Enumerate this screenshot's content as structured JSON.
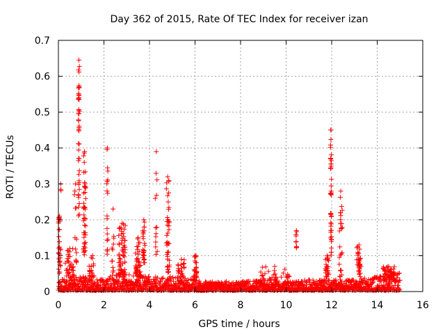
{
  "chart_data": {
    "type": "scatter",
    "title": "Day 362 of 2015, Rate Of TEC Index for receiver izan",
    "xlabel": "GPS time / hours",
    "ylabel": "ROTI / TECUs",
    "xlim": [
      0,
      16
    ],
    "ylim": [
      0,
      0.7
    ],
    "x_ticks": [
      "0",
      "2",
      "4",
      "6",
      "8",
      "10",
      "12",
      "14",
      "16"
    ],
    "y_ticks": [
      "0",
      "0.1",
      "0.2",
      "0.3",
      "0.4",
      "0.5",
      "0.6",
      "0.7"
    ],
    "grid": true,
    "marker": "+",
    "series_color": "#ff0000",
    "x_data_range": [
      0,
      15
    ],
    "baseline_envelope": [
      {
        "x": 0.0,
        "y": 0.03
      },
      {
        "x": 1.0,
        "y": 0.04
      },
      {
        "x": 2.0,
        "y": 0.03
      },
      {
        "x": 2.5,
        "y": 0.05
      },
      {
        "x": 3.5,
        "y": 0.04
      },
      {
        "x": 5.0,
        "y": 0.04
      },
      {
        "x": 6.5,
        "y": 0.025
      },
      {
        "x": 8.0,
        "y": 0.025
      },
      {
        "x": 9.0,
        "y": 0.03
      },
      {
        "x": 10.0,
        "y": 0.025
      },
      {
        "x": 11.0,
        "y": 0.03
      },
      {
        "x": 12.0,
        "y": 0.03
      },
      {
        "x": 13.0,
        "y": 0.03
      },
      {
        "x": 14.0,
        "y": 0.04
      },
      {
        "x": 15.0,
        "y": 0.05
      }
    ],
    "clusters": [
      {
        "x": 0.05,
        "spread": 0.1,
        "ymin": 0.05,
        "ymax": 0.21,
        "n": 30
      },
      {
        "x": 0.1,
        "spread": 0.05,
        "ymin": 0.28,
        "ymax": 0.3,
        "n": 2
      },
      {
        "x": 0.5,
        "spread": 0.4,
        "ymin": 0.04,
        "ymax": 0.12,
        "n": 35
      },
      {
        "x": 0.75,
        "spread": 0.1,
        "ymin": 0.08,
        "ymax": 0.3,
        "n": 12
      },
      {
        "x": 0.9,
        "spread": 0.05,
        "ymin": 0.2,
        "ymax": 0.645,
        "n": 45
      },
      {
        "x": 1.15,
        "spread": 0.1,
        "ymin": 0.1,
        "ymax": 0.39,
        "n": 45
      },
      {
        "x": 1.5,
        "spread": 0.3,
        "ymin": 0.04,
        "ymax": 0.1,
        "n": 20
      },
      {
        "x": 2.15,
        "spread": 0.05,
        "ymin": 0.1,
        "ymax": 0.4,
        "n": 18
      },
      {
        "x": 2.4,
        "spread": 0.1,
        "ymin": 0.05,
        "ymax": 0.23,
        "n": 10
      },
      {
        "x": 2.8,
        "spread": 0.3,
        "ymin": 0.04,
        "ymax": 0.19,
        "n": 60
      },
      {
        "x": 3.5,
        "spread": 0.25,
        "ymin": 0.04,
        "ymax": 0.15,
        "n": 40
      },
      {
        "x": 3.75,
        "spread": 0.1,
        "ymin": 0.08,
        "ymax": 0.2,
        "n": 25
      },
      {
        "x": 4.3,
        "spread": 0.1,
        "ymin": 0.1,
        "ymax": 0.39,
        "n": 12
      },
      {
        "x": 4.8,
        "spread": 0.15,
        "ymin": 0.05,
        "ymax": 0.32,
        "n": 40
      },
      {
        "x": 5.4,
        "spread": 0.3,
        "ymin": 0.03,
        "ymax": 0.09,
        "n": 30
      },
      {
        "x": 6.0,
        "spread": 0.15,
        "ymin": 0.03,
        "ymax": 0.1,
        "n": 30
      },
      {
        "x": 9.5,
        "spread": 1.3,
        "ymin": 0.03,
        "ymax": 0.07,
        "n": 30
      },
      {
        "x": 10.45,
        "spread": 0.05,
        "ymin": 0.12,
        "ymax": 0.17,
        "n": 10
      },
      {
        "x": 11.8,
        "spread": 0.15,
        "ymin": 0.04,
        "ymax": 0.1,
        "n": 25
      },
      {
        "x": 11.97,
        "spread": 0.05,
        "ymin": 0.1,
        "ymax": 0.45,
        "n": 40
      },
      {
        "x": 12.4,
        "spread": 0.15,
        "ymin": 0.04,
        "ymax": 0.28,
        "n": 25
      },
      {
        "x": 13.2,
        "spread": 0.2,
        "ymin": 0.04,
        "ymax": 0.13,
        "n": 30
      },
      {
        "x": 14.5,
        "spread": 0.5,
        "ymin": 0.03,
        "ymax": 0.07,
        "n": 50
      }
    ]
  }
}
